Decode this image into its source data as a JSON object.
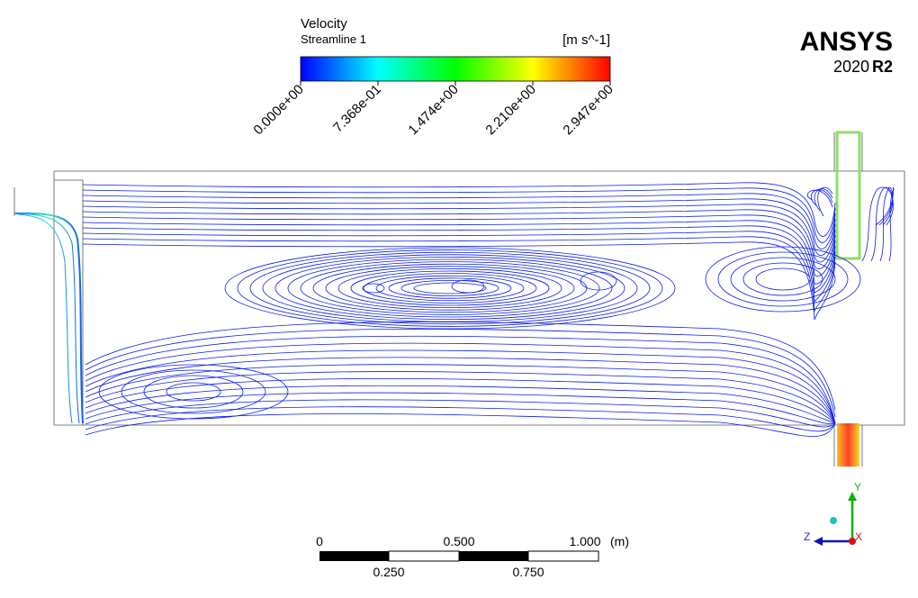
{
  "legend": {
    "title": "Velocity",
    "subtitle": "Streamline 1",
    "unit": "[m s^-1]",
    "ticks": [
      "0.000e+00",
      "7.368e-01",
      "1.474e+00",
      "2.210e+00",
      "2.947e+00"
    ]
  },
  "logo": {
    "name": "ANSYS",
    "version": "2020",
    "release": "R2"
  },
  "scale_bar": {
    "top_labels": [
      "0",
      "0.500",
      "1.000"
    ],
    "unit": "(m)",
    "bottom_labels": [
      "0.250",
      "0.750"
    ]
  },
  "axes": {
    "y": "Y",
    "z": "Z",
    "x": "X"
  }
}
